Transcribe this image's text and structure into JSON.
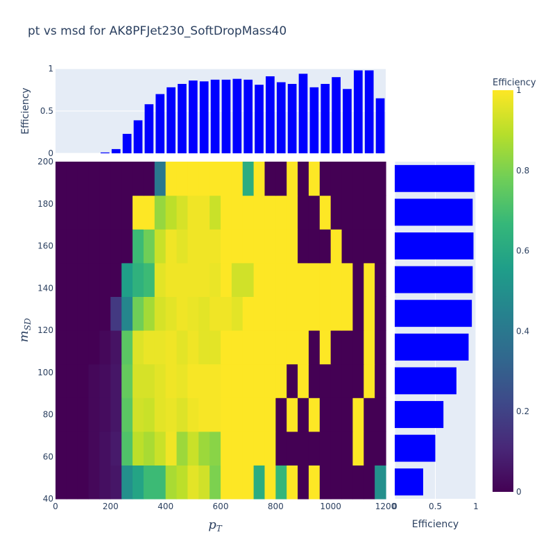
{
  "title": "pt vs msd for AK8PFJet230_SoftDropMass40",
  "colors": {
    "bar": "#0000ff",
    "panel_bg": "#e5ecf6",
    "text": "#2a3f5f",
    "viridis": [
      "#440154",
      "#482878",
      "#3e4989",
      "#31688e",
      "#26828e",
      "#1f9e89",
      "#35b779",
      "#6ece58",
      "#b5de2b",
      "#fde725"
    ]
  },
  "chart_data": [
    {
      "type": "bar",
      "orientation": "vertical",
      "panel": "top",
      "ylabel": "Efficiency",
      "ylim": [
        0,
        1
      ],
      "xlim": [
        0,
        1200
      ],
      "yticks": [
        0,
        0.5,
        1
      ],
      "ytick_labels": [
        "0",
        "0.5",
        "1"
      ],
      "grid": true,
      "bin_width": 40,
      "x": [
        20,
        60,
        100,
        140,
        180,
        220,
        260,
        300,
        340,
        380,
        420,
        460,
        500,
        540,
        580,
        620,
        660,
        700,
        740,
        780,
        820,
        860,
        900,
        940,
        980,
        1020,
        1060,
        1100,
        1140,
        1180
      ],
      "values": [
        0,
        0,
        0,
        0,
        0.01,
        0.05,
        0.23,
        0.39,
        0.58,
        0.7,
        0.78,
        0.82,
        0.86,
        0.85,
        0.87,
        0.87,
        0.88,
        0.87,
        0.81,
        0.91,
        0.84,
        0.82,
        0.94,
        0.78,
        0.82,
        0.9,
        0.76,
        0.98,
        0.98,
        0.65
      ]
    },
    {
      "type": "bar",
      "orientation": "horizontal",
      "panel": "right",
      "xlabel": "Efficiency",
      "xlim": [
        0,
        1
      ],
      "xticks": [
        0,
        0.5,
        1
      ],
      "xtick_labels": [
        "0",
        "0.5",
        "1"
      ],
      "ylim": [
        40,
        200
      ],
      "bin_height": 16,
      "y": [
        48,
        64,
        80,
        96,
        112,
        128,
        144,
        160,
        176,
        192
      ],
      "values": [
        0.35,
        0.5,
        0.6,
        0.76,
        0.91,
        0.95,
        0.96,
        0.97,
        0.96,
        0.98
      ]
    },
    {
      "type": "heatmap",
      "panel": "main",
      "xlabel": "p_T",
      "ylabel": "m_SD",
      "xlim": [
        0,
        1200
      ],
      "ylim": [
        40,
        200
      ],
      "xticks": [
        0,
        200,
        400,
        600,
        800,
        1000,
        1200
      ],
      "xtick_labels": [
        "0",
        "200",
        "400",
        "600",
        "800",
        "1000",
        "1200"
      ],
      "yticks": [
        40,
        60,
        80,
        100,
        120,
        140,
        160,
        180,
        200
      ],
      "ytick_labels": [
        "40",
        "60",
        "80",
        "100",
        "120",
        "140",
        "160",
        "180",
        "200"
      ],
      "x_bin_width": 40,
      "y_edges": [
        40,
        56,
        72,
        88,
        104,
        120,
        136,
        152,
        168,
        184,
        200
      ],
      "colorscale": "Viridis",
      "colorbar": {
        "title": "Efficiency",
        "range": [
          0,
          1
        ],
        "ticks": [
          0,
          0.2,
          0.4,
          0.6,
          0.8,
          1
        ],
        "tick_labels": [
          "0",
          "0.2",
          "0.4",
          "0.6",
          "0.8",
          "1"
        ]
      },
      "z": [
        [
          0,
          0,
          0,
          0.02,
          0.04,
          0.06,
          0.5,
          0.58,
          0.68,
          0.68,
          0.87,
          0.9,
          0.96,
          0.93,
          0.8,
          1,
          1,
          1,
          0.62,
          1,
          0.66,
          1,
          0,
          1,
          0,
          0,
          0,
          0,
          0,
          0.5
        ],
        [
          0,
          0,
          0,
          0.02,
          0.04,
          0.07,
          0.72,
          0.9,
          0.87,
          0.92,
          0.98,
          0.85,
          0.92,
          0.85,
          0.82,
          1,
          1,
          1,
          1,
          1,
          0,
          0,
          0,
          0,
          0,
          0,
          0,
          1,
          0,
          0
        ],
        [
          0,
          0,
          0,
          0.02,
          0.03,
          0.06,
          0.74,
          0.93,
          0.92,
          0.96,
          0.97,
          0.95,
          0.98,
          0.99,
          0.99,
          1,
          1,
          1,
          1,
          1,
          0,
          1,
          0,
          1,
          0,
          0,
          0,
          1,
          0,
          0
        ],
        [
          0,
          0,
          0,
          0.02,
          0.03,
          0.06,
          0.76,
          0.94,
          0.94,
          0.96,
          0.98,
          0.97,
          0.99,
          0.99,
          0.99,
          1,
          1,
          1,
          1,
          1,
          1,
          0,
          1,
          0,
          0,
          0,
          0,
          0,
          1,
          0
        ],
        [
          0,
          0,
          0,
          0,
          0.02,
          0.05,
          0.74,
          0.95,
          0.97,
          0.97,
          0.98,
          0.96,
          0.98,
          0.96,
          0.96,
          1,
          1,
          1,
          1,
          1,
          1,
          1,
          1,
          0,
          1,
          0,
          0,
          0,
          1,
          0
        ],
        [
          0,
          0,
          0,
          0,
          0,
          0.17,
          0.46,
          0.78,
          0.86,
          0.94,
          0.96,
          0.98,
          0.97,
          0.96,
          0.98,
          0.98,
          0.96,
          1,
          1,
          1,
          1,
          1,
          1,
          1,
          1,
          1,
          1,
          0,
          1,
          0
        ],
        [
          0,
          0,
          0,
          0,
          0,
          0,
          0.56,
          0.64,
          0.68,
          0.96,
          0.98,
          0.98,
          0.98,
          0.98,
          0.97,
          1,
          0.93,
          0.93,
          1,
          1,
          1,
          1,
          1,
          1,
          1,
          1,
          1,
          0,
          1,
          0
        ],
        [
          0,
          0,
          0,
          0,
          0,
          0,
          0,
          0.68,
          0.78,
          0.92,
          0.98,
          0.96,
          0.98,
          0.98,
          0.98,
          1,
          1,
          1,
          1,
          1,
          1,
          1,
          0,
          0,
          0,
          1,
          0,
          0,
          0,
          0
        ],
        [
          0,
          0,
          0,
          0,
          0,
          0,
          0,
          1,
          1,
          0.84,
          0.9,
          0.94,
          0.98,
          0.98,
          0.92,
          1,
          1,
          1,
          1,
          1,
          1,
          1,
          0,
          0,
          1,
          0,
          0,
          0,
          0,
          0
        ],
        [
          0,
          0,
          0,
          0,
          0,
          0,
          0,
          0,
          0,
          0.4,
          1,
          1,
          1,
          1,
          1,
          1,
          1,
          0.62,
          1,
          0,
          0,
          1,
          0,
          1,
          0,
          0,
          0,
          0,
          0,
          0
        ]
      ]
    }
  ]
}
